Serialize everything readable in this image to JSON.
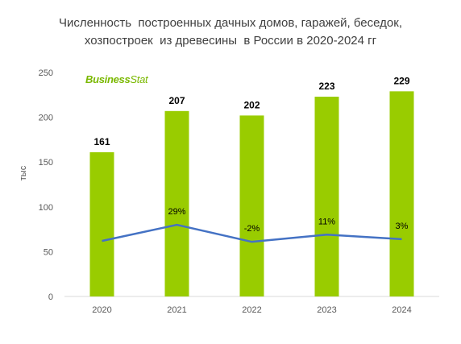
{
  "chart_data": {
    "type": "bar",
    "title_lines": [
      "Численность  построенных дачных домов, гаражей, беседок,",
      "хозпостроек  из древесины  в России в 2020-2024 гг"
    ],
    "ylabel": "тыс",
    "ylim": [
      0,
      250
    ],
    "yticks": [
      0,
      50,
      100,
      150,
      200,
      250
    ],
    "categories": [
      "2020",
      "2021",
      "2022",
      "2023",
      "2024"
    ],
    "series": [
      {
        "type": "bar",
        "values": [
          161,
          207,
          202,
          223,
          229
        ],
        "value_labels": [
          "161",
          "207",
          "202",
          "223",
          "229"
        ]
      },
      {
        "type": "line",
        "values": [
          62,
          80,
          61,
          69,
          64
        ],
        "value_labels": [
          "",
          "29%",
          "-2%",
          "11%",
          "3%"
        ]
      }
    ],
    "grid": false,
    "legend": "none"
  },
  "logo": {
    "text_a": "Business",
    "text_b": "Stat"
  },
  "colors": {
    "bar": "#99cc00",
    "line": "#4472c4",
    "axis_text": "#595959",
    "label": "#000000"
  }
}
